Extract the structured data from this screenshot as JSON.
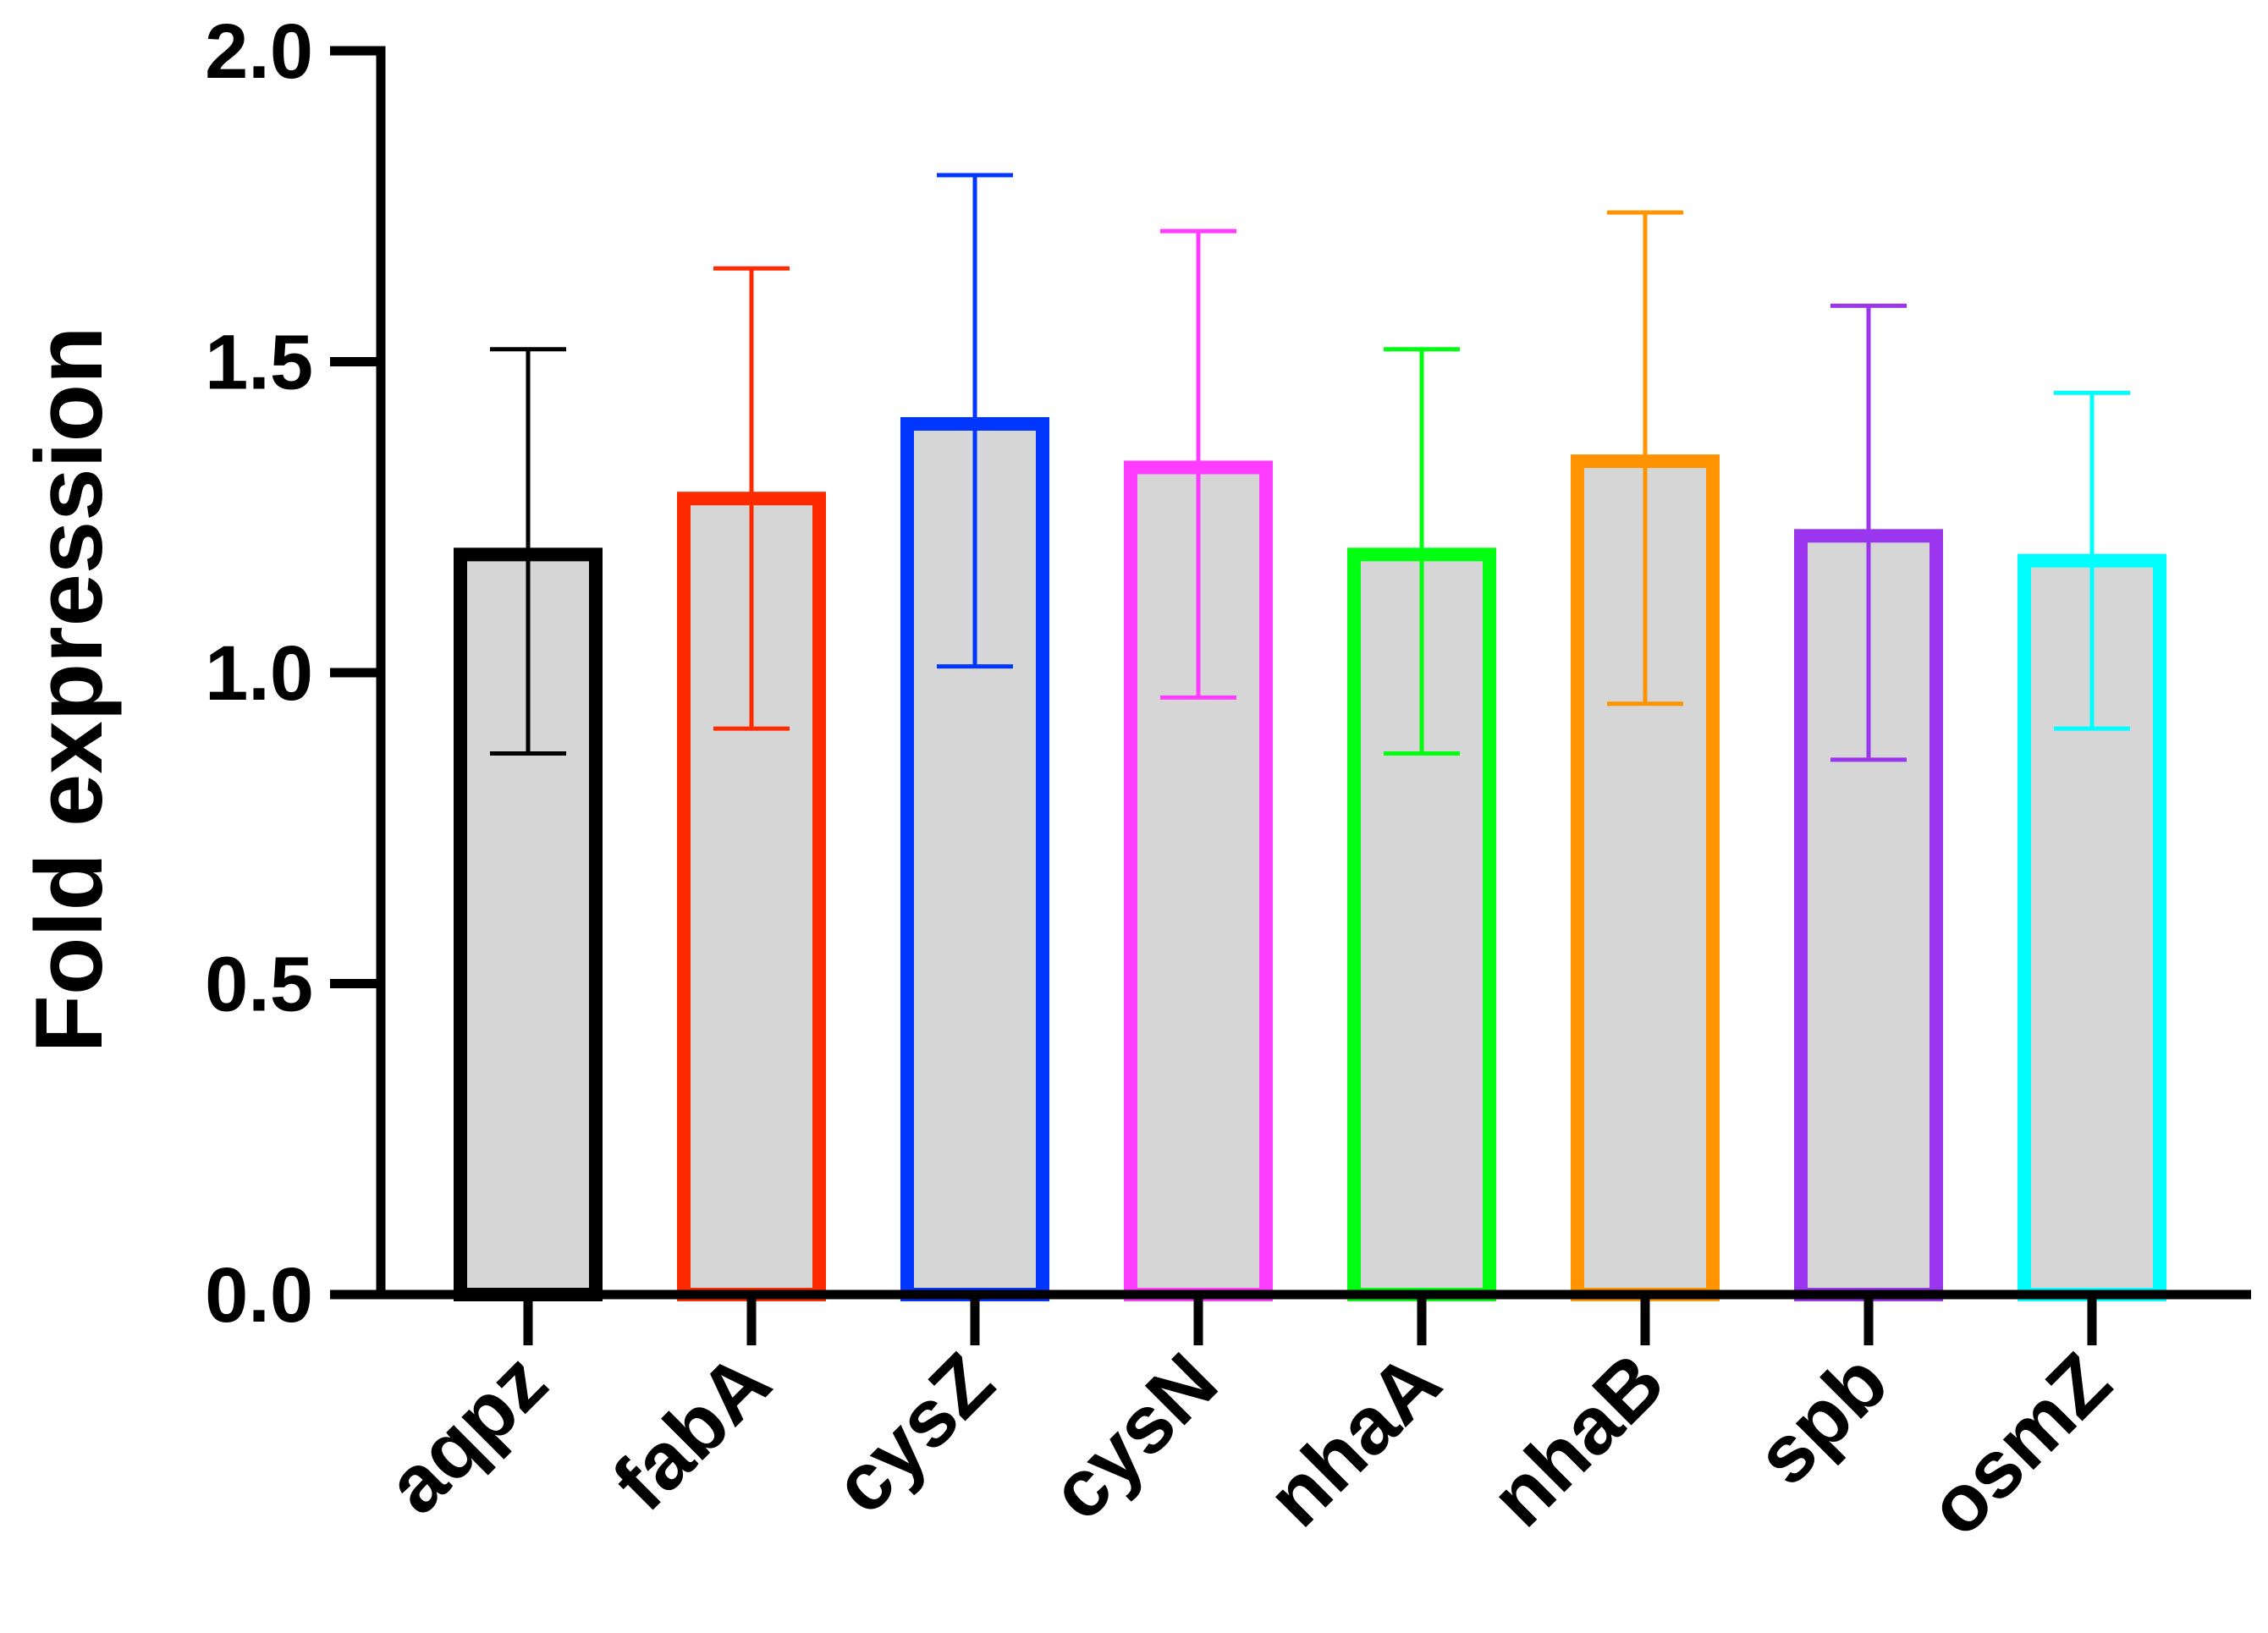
{
  "chart_data": {
    "type": "bar",
    "title": "",
    "xlabel": "",
    "ylabel": "Fold expression",
    "ylim": [
      0,
      2.0
    ],
    "yticks": [
      0.0,
      0.5,
      1.0,
      1.5,
      2.0
    ],
    "ytick_labels": [
      "0.0",
      "0.5",
      "1.0",
      "1.5",
      "2.0"
    ],
    "grid": false,
    "legend": "none",
    "bar_fill_color": "#d6d6d6",
    "categories": [
      "aqpz",
      "fabA",
      "cysZ",
      "cysN",
      "nhaA",
      "nhaB",
      "spb",
      "osmZ"
    ],
    "values": [
      1.19,
      1.28,
      1.4,
      1.33,
      1.19,
      1.34,
      1.22,
      1.18
    ],
    "error_lower": [
      0.87,
      0.91,
      1.01,
      0.96,
      0.87,
      0.95,
      0.86,
      0.91
    ],
    "error_upper": [
      1.52,
      1.65,
      1.8,
      1.71,
      1.52,
      1.74,
      1.59,
      1.45
    ],
    "bar_colors": [
      "#000000",
      "#ff2a00",
      "#0036ff",
      "#ff3cff",
      "#00ff11",
      "#ff9400",
      "#9a36ee",
      "#00ffff"
    ]
  }
}
